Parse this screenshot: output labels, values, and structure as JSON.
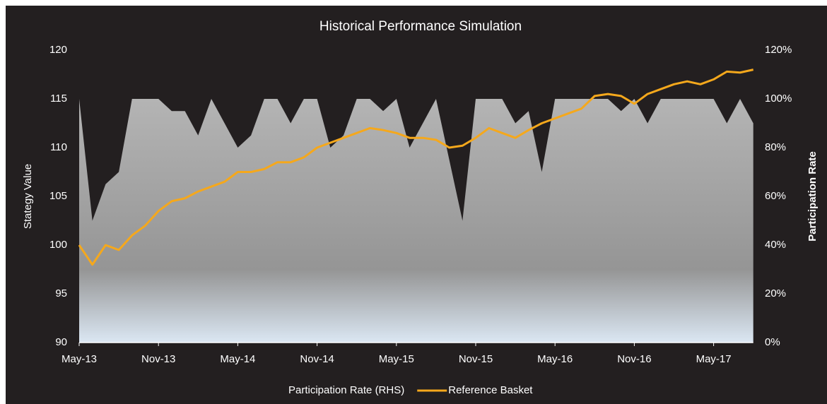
{
  "chart_data": {
    "type": "line-area",
    "title": "Historical Performance Simulation",
    "ylabel": "Stategy Value",
    "y2label": "Participation Rate",
    "x": [
      "2013-05",
      "2013-06",
      "2013-07",
      "2013-08",
      "2013-09",
      "2013-10",
      "2013-11",
      "2013-12",
      "2014-01",
      "2014-02",
      "2014-03",
      "2014-04",
      "2014-05",
      "2014-06",
      "2014-07",
      "2014-08",
      "2014-09",
      "2014-10",
      "2014-11",
      "2014-12",
      "2015-01",
      "2015-02",
      "2015-03",
      "2015-04",
      "2015-05",
      "2015-06",
      "2015-07",
      "2015-08",
      "2015-09",
      "2015-10",
      "2015-11",
      "2015-12",
      "2016-01",
      "2016-02",
      "2016-03",
      "2016-04",
      "2016-05",
      "2016-06",
      "2016-07",
      "2016-08",
      "2016-09",
      "2016-10",
      "2016-11",
      "2016-12",
      "2017-01",
      "2017-02",
      "2017-03",
      "2017-04",
      "2017-05",
      "2017-06",
      "2017-07",
      "2017-08"
    ],
    "series": [
      {
        "name": "Participation Rate (RHS)",
        "axis": "y2",
        "kind": "area",
        "color": "#9a9a9a",
        "values": [
          100,
          50,
          65,
          70,
          100,
          100,
          100,
          95,
          95,
          85,
          100,
          90,
          80,
          85,
          100,
          100,
          90,
          100,
          100,
          80,
          85,
          100,
          100,
          95,
          100,
          80,
          90,
          100,
          75,
          50,
          100,
          100,
          100,
          90,
          95,
          70,
          100,
          100,
          100,
          100,
          100,
          95,
          100,
          90,
          100,
          100,
          100,
          100,
          100,
          90,
          100,
          90
        ]
      },
      {
        "name": "Reference Basket",
        "kind": "line",
        "color": "#f5a81c",
        "values": [
          100,
          98,
          100,
          99.5,
          101,
          102,
          103.5,
          104.5,
          104.8,
          105.5,
          106,
          106.5,
          107.5,
          107.5,
          107.8,
          108.5,
          108.5,
          109,
          110,
          110.5,
          111,
          111.5,
          112,
          111.8,
          111.5,
          111,
          111,
          110.8,
          110,
          110.2,
          111,
          112,
          111.5,
          111,
          111.8,
          112.5,
          113,
          113.5,
          114,
          115.3,
          115.5,
          115.3,
          114.5,
          115.5,
          116,
          116.5,
          116.8,
          116.5,
          117,
          117.8,
          117.7,
          118
        ]
      }
    ],
    "xticks": [
      {
        "value": "2013-05",
        "label": "May-13"
      },
      {
        "value": "2013-11",
        "label": "Nov-13"
      },
      {
        "value": "2014-05",
        "label": "May-14"
      },
      {
        "value": "2014-11",
        "label": "Nov-14"
      },
      {
        "value": "2015-05",
        "label": "May-15"
      },
      {
        "value": "2015-11",
        "label": "Nov-15"
      },
      {
        "value": "2016-05",
        "label": "May-16"
      },
      {
        "value": "2016-11",
        "label": "Nov-16"
      },
      {
        "value": "2017-05",
        "label": "May-17"
      }
    ],
    "ylim": [
      90,
      120
    ],
    "yticks": [
      90,
      95,
      100,
      105,
      110,
      115,
      120
    ],
    "y2lim": [
      0,
      120
    ],
    "y2ticks": [
      {
        "value": 0,
        "label": "0%"
      },
      {
        "value": 20,
        "label": "20%"
      },
      {
        "value": 40,
        "label": "40%"
      },
      {
        "value": 60,
        "label": "60%"
      },
      {
        "value": 80,
        "label": "80%"
      },
      {
        "value": 100,
        "label": "100%"
      },
      {
        "value": 120,
        "label": "120%"
      }
    ],
    "legend": "bottom"
  }
}
